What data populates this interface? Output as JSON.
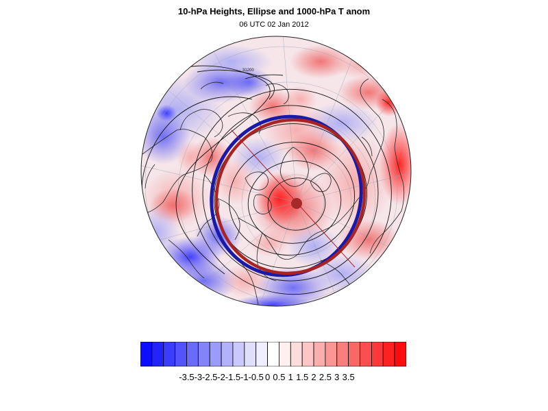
{
  "title": "10-hPa Heights, Ellipse and 1000-hPa T anom",
  "subtitle": "06 UTC 02 Jan 2012",
  "contour_label": "31200",
  "colorbar": {
    "labels": [
      "-3.5",
      "-3",
      "-2.5",
      "-2",
      "-1.5",
      "-1",
      "-0.5",
      "0",
      "0.5",
      "1",
      "1.5",
      "2",
      "2.5",
      "3",
      "3.5"
    ],
    "colors": [
      "#0d0dff",
      "#2323fd",
      "#3c3cfc",
      "#5353fb",
      "#6b6bfb",
      "#8383fa",
      "#9b9bfb",
      "#b2b2fb",
      "#c9c9fb",
      "#dfdffc",
      "#efefff",
      "#ffffff",
      "#fff0f0",
      "#fddcdc",
      "#fcc6c6",
      "#fbaeae",
      "#fb9696",
      "#fa7e7e",
      "#fa6767",
      "#fb4f4f",
      "#fc3838",
      "#fd2222",
      "#ff0d0d"
    ]
  },
  "colors": {
    "ellipse_blue": "#1a1aa8",
    "ellipse_red": "#a82424",
    "center_dot": "#a62a2a"
  }
}
